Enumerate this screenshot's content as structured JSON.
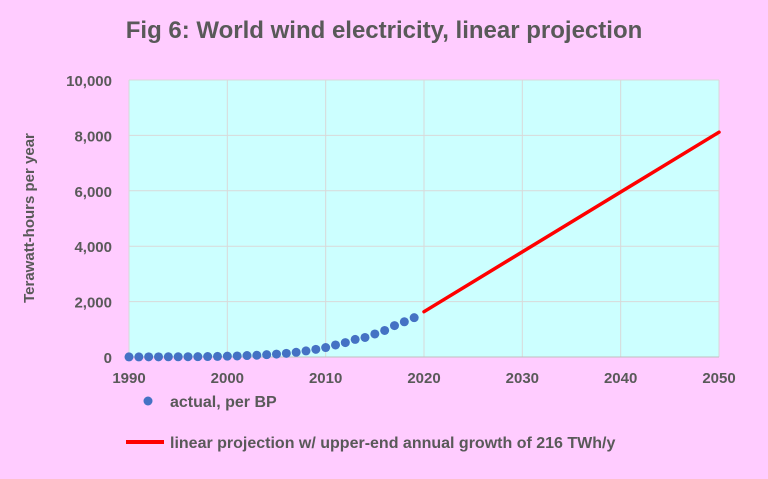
{
  "chart_data": {
    "type": "scatter",
    "title": "Fig 6: World wind electricity, linear projection",
    "xlabel": "",
    "ylabel": "Terawatt-hours per year",
    "xlim": [
      1990,
      2050
    ],
    "ylim": [
      0,
      10000
    ],
    "x_ticks": [
      1990,
      2000,
      2010,
      2020,
      2030,
      2040,
      2050
    ],
    "y_ticks": [
      0,
      2000,
      4000,
      6000,
      8000,
      10000
    ],
    "y_tick_labels": [
      "0",
      "2,000",
      "4,000",
      "6,000",
      "8,000",
      "10,000"
    ],
    "grid": true,
    "legend_position": "bottom",
    "colors": {
      "page_background": "#ffccff",
      "plot_background": "#ccffff",
      "grid": "#d9d9d9",
      "axis_text": "#595959",
      "actual": "#4472c4",
      "projection": "#ff0000"
    },
    "series": [
      {
        "name": "actual, per BP",
        "type": "scatter",
        "color": "#4472c4",
        "x": [
          1990,
          1991,
          1992,
          1993,
          1994,
          1995,
          1996,
          1997,
          1998,
          1999,
          2000,
          2001,
          2002,
          2003,
          2004,
          2005,
          2006,
          2007,
          2008,
          2009,
          2010,
          2011,
          2012,
          2013,
          2014,
          2015,
          2016,
          2017,
          2018,
          2019
        ],
        "y": [
          4,
          4,
          5,
          6,
          7,
          8,
          11,
          12,
          16,
          21,
          31,
          38,
          52,
          63,
          85,
          104,
          132,
          170,
          219,
          276,
          342,
          435,
          520,
          636,
          706,
          832,
          958,
          1134,
          1271,
          1420
        ]
      },
      {
        "name": "linear projection w/ upper-end annual growth of 216 TWh/y",
        "type": "line",
        "color": "#ff0000",
        "x": [
          2020,
          2050
        ],
        "y": [
          1636,
          8116
        ]
      }
    ]
  }
}
